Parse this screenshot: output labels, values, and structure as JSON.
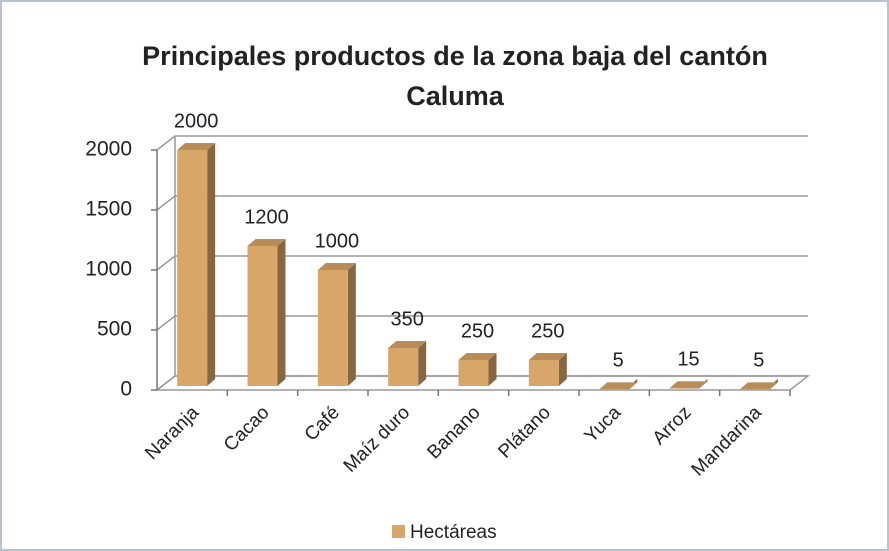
{
  "chart_data": {
    "type": "bar3d",
    "title": "Principales productos de la zona baja del cantón Caluma",
    "categories": [
      "Naranja",
      "Cacao",
      "Café",
      "Maíz duro",
      "Banano",
      "Plátano",
      "Yuca",
      "Arroz",
      "Mandarina"
    ],
    "series": [
      {
        "name": "Hectáreas",
        "color": "#d9a66a",
        "values": [
          2000,
          1200,
          1000,
          350,
          250,
          250,
          5,
          15,
          5
        ]
      }
    ],
    "ylim": [
      0,
      2000
    ],
    "yticks": [
      0,
      500,
      1000,
      1500,
      2000
    ],
    "grid": true,
    "legend": "bottom"
  }
}
